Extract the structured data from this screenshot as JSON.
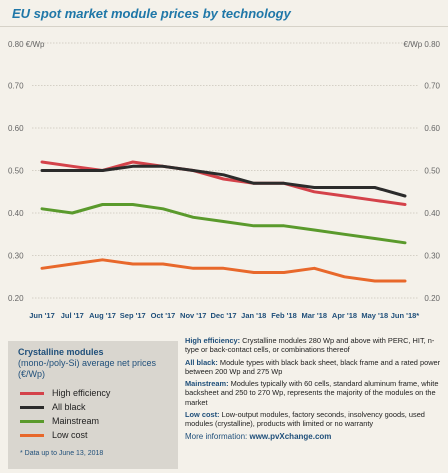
{
  "chart_data": {
    "type": "line",
    "title": "EU spot market module prices  by technology",
    "y_axis_left_label": "0.80 €/Wp",
    "y_axis_right_label": "€/Wp 0.80",
    "ylim": [
      0.2,
      0.8
    ],
    "yticks": [
      "0.20",
      "0.30",
      "0.40",
      "0.50",
      "0.60",
      "0.70"
    ],
    "grid": true,
    "categories": [
      "Jun '17",
      "Jul '17",
      "Aug '17",
      "Sep '17",
      "Oct '17",
      "Nov '17",
      "Dec '17",
      "Jan '18",
      "Feb '18",
      "Mar '18",
      "Apr '18",
      "May '18",
      "Jun '18*"
    ],
    "series": [
      {
        "name": "High efficiency",
        "color": "#d4424a",
        "values": [
          0.52,
          0.51,
          0.5,
          0.52,
          0.51,
          0.5,
          0.48,
          0.47,
          0.47,
          0.45,
          0.44,
          0.43,
          0.42
        ]
      },
      {
        "name": "All black",
        "color": "#2b2b2b",
        "values": [
          0.5,
          0.5,
          0.5,
          0.51,
          0.51,
          0.5,
          0.49,
          0.47,
          0.47,
          0.46,
          0.46,
          0.46,
          0.44
        ]
      },
      {
        "name": "Mainstream",
        "color": "#5a9a2c",
        "values": [
          0.41,
          0.4,
          0.42,
          0.42,
          0.41,
          0.39,
          0.38,
          0.37,
          0.37,
          0.36,
          0.35,
          0.34,
          0.33
        ]
      },
      {
        "name": "Low cost",
        "color": "#e8682b",
        "values": [
          0.27,
          0.28,
          0.29,
          0.28,
          0.28,
          0.27,
          0.27,
          0.26,
          0.26,
          0.27,
          0.25,
          0.24,
          0.24
        ]
      }
    ]
  },
  "legend": {
    "title": "Crystalline modules",
    "subtitle": "(mono-/poly-Si) average net prices (€/Wp)",
    "footnote": "* Data up to June 13, 2018"
  },
  "definitions": [
    {
      "head": "High efficiency:",
      "body": " Crystalline modules 280 Wp and above with PERC, HIT, n-type or back-contact cells, or combinations thereof"
    },
    {
      "head": "All black:",
      "body": " Module types with black back sheet, black frame and a rated power between 200 Wp and 275 Wp"
    },
    {
      "head": "Mainstream:",
      "body": " Modules typically with 60 cells, standard aluminum frame, white backsheet and 250 to 270 Wp, represents the majority of the modules on the market"
    },
    {
      "head": "Low cost:",
      "body": " Low-output modules, factory seconds, insolvency goods, used modules (crystalline), products with limited or no warranty"
    }
  ],
  "info": {
    "label": "More information: ",
    "url": "www.pvXchange.com"
  }
}
